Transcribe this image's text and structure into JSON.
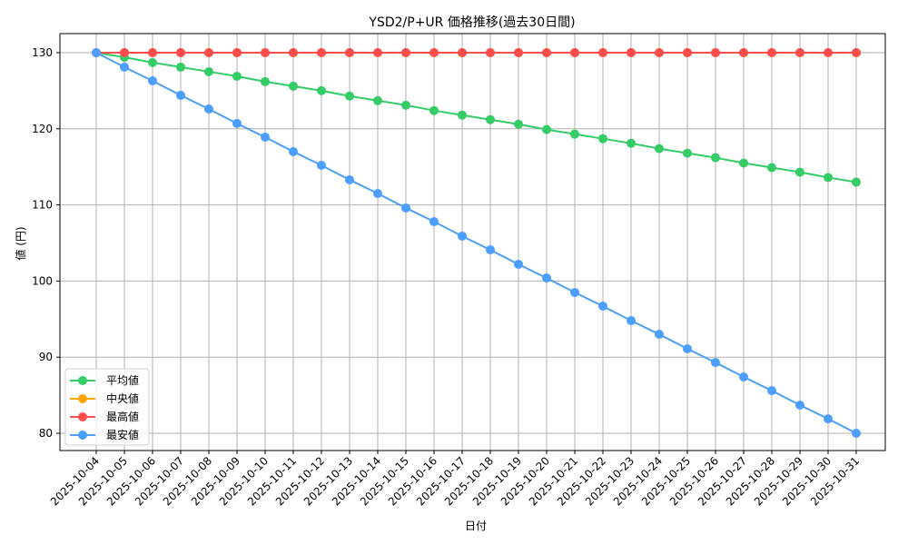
{
  "chart_data": {
    "type": "line",
    "title": "YSD2/P+UR 価格推移(過去30日間)",
    "xlabel": "日付",
    "ylabel": "値 (円)",
    "ylim": [
      77.5,
      132.5
    ],
    "yticks": [
      80,
      90,
      100,
      110,
      120,
      130
    ],
    "grid": true,
    "legend_position": "lower left",
    "x": [
      "2025-10-04",
      "2025-10-05",
      "2025-10-06",
      "2025-10-07",
      "2025-10-08",
      "2025-10-09",
      "2025-10-10",
      "2025-10-11",
      "2025-10-12",
      "2025-10-13",
      "2025-10-14",
      "2025-10-15",
      "2025-10-16",
      "2025-10-17",
      "2025-10-18",
      "2025-10-19",
      "2025-10-20",
      "2025-10-21",
      "2025-10-22",
      "2025-10-23",
      "2025-10-24",
      "2025-10-25",
      "2025-10-26",
      "2025-10-27",
      "2025-10-28",
      "2025-10-29",
      "2025-10-30",
      "2025-10-31"
    ],
    "series": [
      {
        "name": "平均値",
        "color": "#33cc66",
        "values": [
          130.0,
          129.4,
          128.7,
          128.1,
          127.5,
          126.9,
          126.2,
          125.6,
          125.0,
          124.3,
          123.7,
          123.1,
          122.4,
          121.8,
          121.2,
          120.6,
          119.9,
          119.3,
          118.7,
          118.1,
          117.4,
          116.8,
          116.2,
          115.5,
          114.9,
          114.3,
          113.6,
          113.0
        ]
      },
      {
        "name": "中央値",
        "color": "#ffa500",
        "values": [
          130,
          130,
          130,
          130,
          130,
          130,
          130,
          130,
          130,
          130,
          130,
          130,
          130,
          130,
          130,
          130,
          130,
          130,
          130,
          130,
          130,
          130,
          130,
          130,
          130,
          130,
          130,
          130
        ]
      },
      {
        "name": "最高値",
        "color": "#ff4d4d",
        "values": [
          130,
          130,
          130,
          130,
          130,
          130,
          130,
          130,
          130,
          130,
          130,
          130,
          130,
          130,
          130,
          130,
          130,
          130,
          130,
          130,
          130,
          130,
          130,
          130,
          130,
          130,
          130,
          130
        ]
      },
      {
        "name": "最安値",
        "color": "#4d9fff",
        "values": [
          130.0,
          128.1,
          126.3,
          124.4,
          122.6,
          120.7,
          118.9,
          117.0,
          115.2,
          113.3,
          111.5,
          109.6,
          107.8,
          105.9,
          104.1,
          102.2,
          100.4,
          98.5,
          96.7,
          94.8,
          93.0,
          91.1,
          89.3,
          87.4,
          85.6,
          83.7,
          81.9,
          80.0
        ]
      }
    ]
  },
  "colors": {
    "grid": "#b0b0b0",
    "axis": "#000000",
    "legend_border": "#d0d0d0"
  }
}
